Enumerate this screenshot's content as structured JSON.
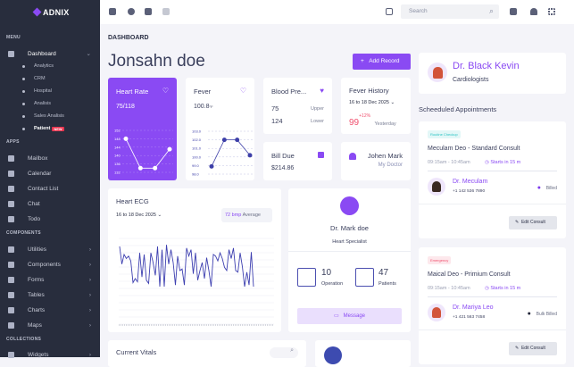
{
  "brand": "ADNIX",
  "sidebar": {
    "sections": [
      "MENU",
      "APPS",
      "COMPONENTS",
      "COLLECTIONS"
    ],
    "dashboard": "Dashboard",
    "sub": [
      "Analytics",
      "CRM",
      "Hospital",
      "Analisis",
      "Sales Analisis",
      "Patient"
    ],
    "new_badge": "NEW",
    "apps": [
      "Mailbox",
      "Calendar",
      "Contact List",
      "Chat",
      "Todo"
    ],
    "components": [
      "Utilities",
      "Components",
      "Forms",
      "Tables",
      "Charts",
      "Maps"
    ],
    "collections": [
      "Widgets"
    ]
  },
  "topbar": {
    "search_placeholder": "Search"
  },
  "page": {
    "breadcrumb": "DASHBOARD",
    "title": "Jonsahn doe",
    "add_record": "Add Record"
  },
  "heart_rate": {
    "title": "Heart Rate",
    "value": "75/118"
  },
  "fever": {
    "title": "Fever",
    "value": "100.8",
    "unit": "°F"
  },
  "blood_pressure": {
    "title": "Blood Pre...",
    "upper_value": "75",
    "upper_label": "Upper",
    "lower_value": "124",
    "lower_label": "Lower"
  },
  "fever_history": {
    "title": "Fever History",
    "date": "16 to 18 Dec 2025",
    "value": "99",
    "change": "+12%",
    "period": "Yesterday"
  },
  "bill_due": {
    "title": "Bill Due",
    "amount": "$214.86"
  },
  "doctor_contact": {
    "name": "Johen Mark",
    "role": "My Doctor"
  },
  "ecg": {
    "title": "Heart ECG",
    "date": "16 to 18 Dec 2025",
    "bpm": "72 bmp",
    "avg_label": "Average"
  },
  "dr_mark": {
    "name": "Dr. Mark doe",
    "role": "Heart Specialist",
    "operations": "10",
    "operations_label": "Operation",
    "patients": "47",
    "patients_label": "Patients",
    "message": "Message"
  },
  "current_vitals": {
    "title": "Current Vitals"
  },
  "dr_black": {
    "name": "Dr. Black Kevin",
    "role": "Cardiologists"
  },
  "appointments": {
    "title": "Scheeduled Appointments",
    "items": [
      {
        "tag": "Routine Checkup",
        "tag_color": "#2bc4c4",
        "title": "Meculam Deo - Standard Consult",
        "time": "09:15am - 10:45am",
        "starts": "Starts in 15 m",
        "doctor": "Dr. Meculam",
        "phone": "+1 142 536 7890",
        "status": "Billed",
        "status_color": "#7c3aed",
        "edit": "Edit Consult"
      },
      {
        "tag": "Emergency",
        "tag_color": "#f0506e",
        "title": "Maical Deo - Primium Consult",
        "time": "09:15am - 10:45am",
        "starts": "Starts in 15 m",
        "doctor": "Dr. Mariya Leo",
        "phone": "+1 421 563 7458",
        "status": "Bulk Billed",
        "status_color": "#1f2437",
        "edit": "Edit Consult"
      }
    ]
  },
  "accent": "#8a4af3",
  "chart_data": [
    {
      "type": "line",
      "name": "heart-rate",
      "yticks": [
        152,
        148,
        144,
        140,
        136,
        132
      ],
      "ylim": [
        132,
        152
      ],
      "values": [
        148,
        134,
        134,
        143
      ]
    },
    {
      "type": "line",
      "name": "fever",
      "yticks": [
        "103.0",
        "102.0",
        "101.0",
        "100.0",
        "99.0",
        "98.0"
      ],
      "ylim": [
        98,
        103
      ],
      "values": [
        98.9,
        102,
        102,
        100.2
      ]
    },
    {
      "type": "line",
      "name": "ecg",
      "values": [
        70,
        48,
        60,
        55,
        58,
        52,
        25,
        30,
        26,
        62,
        32,
        60,
        28,
        24,
        62,
        50,
        34,
        70,
        20,
        66,
        20,
        72,
        48,
        66,
        50,
        22,
        58,
        40,
        42,
        22,
        68,
        58,
        66,
        36,
        62,
        28,
        40,
        50,
        30,
        56,
        40,
        20,
        60,
        58,
        52,
        62,
        55,
        44,
        40,
        66,
        55,
        68,
        40,
        38,
        62,
        45,
        20,
        38,
        22,
        63,
        20
      ]
    }
  ]
}
